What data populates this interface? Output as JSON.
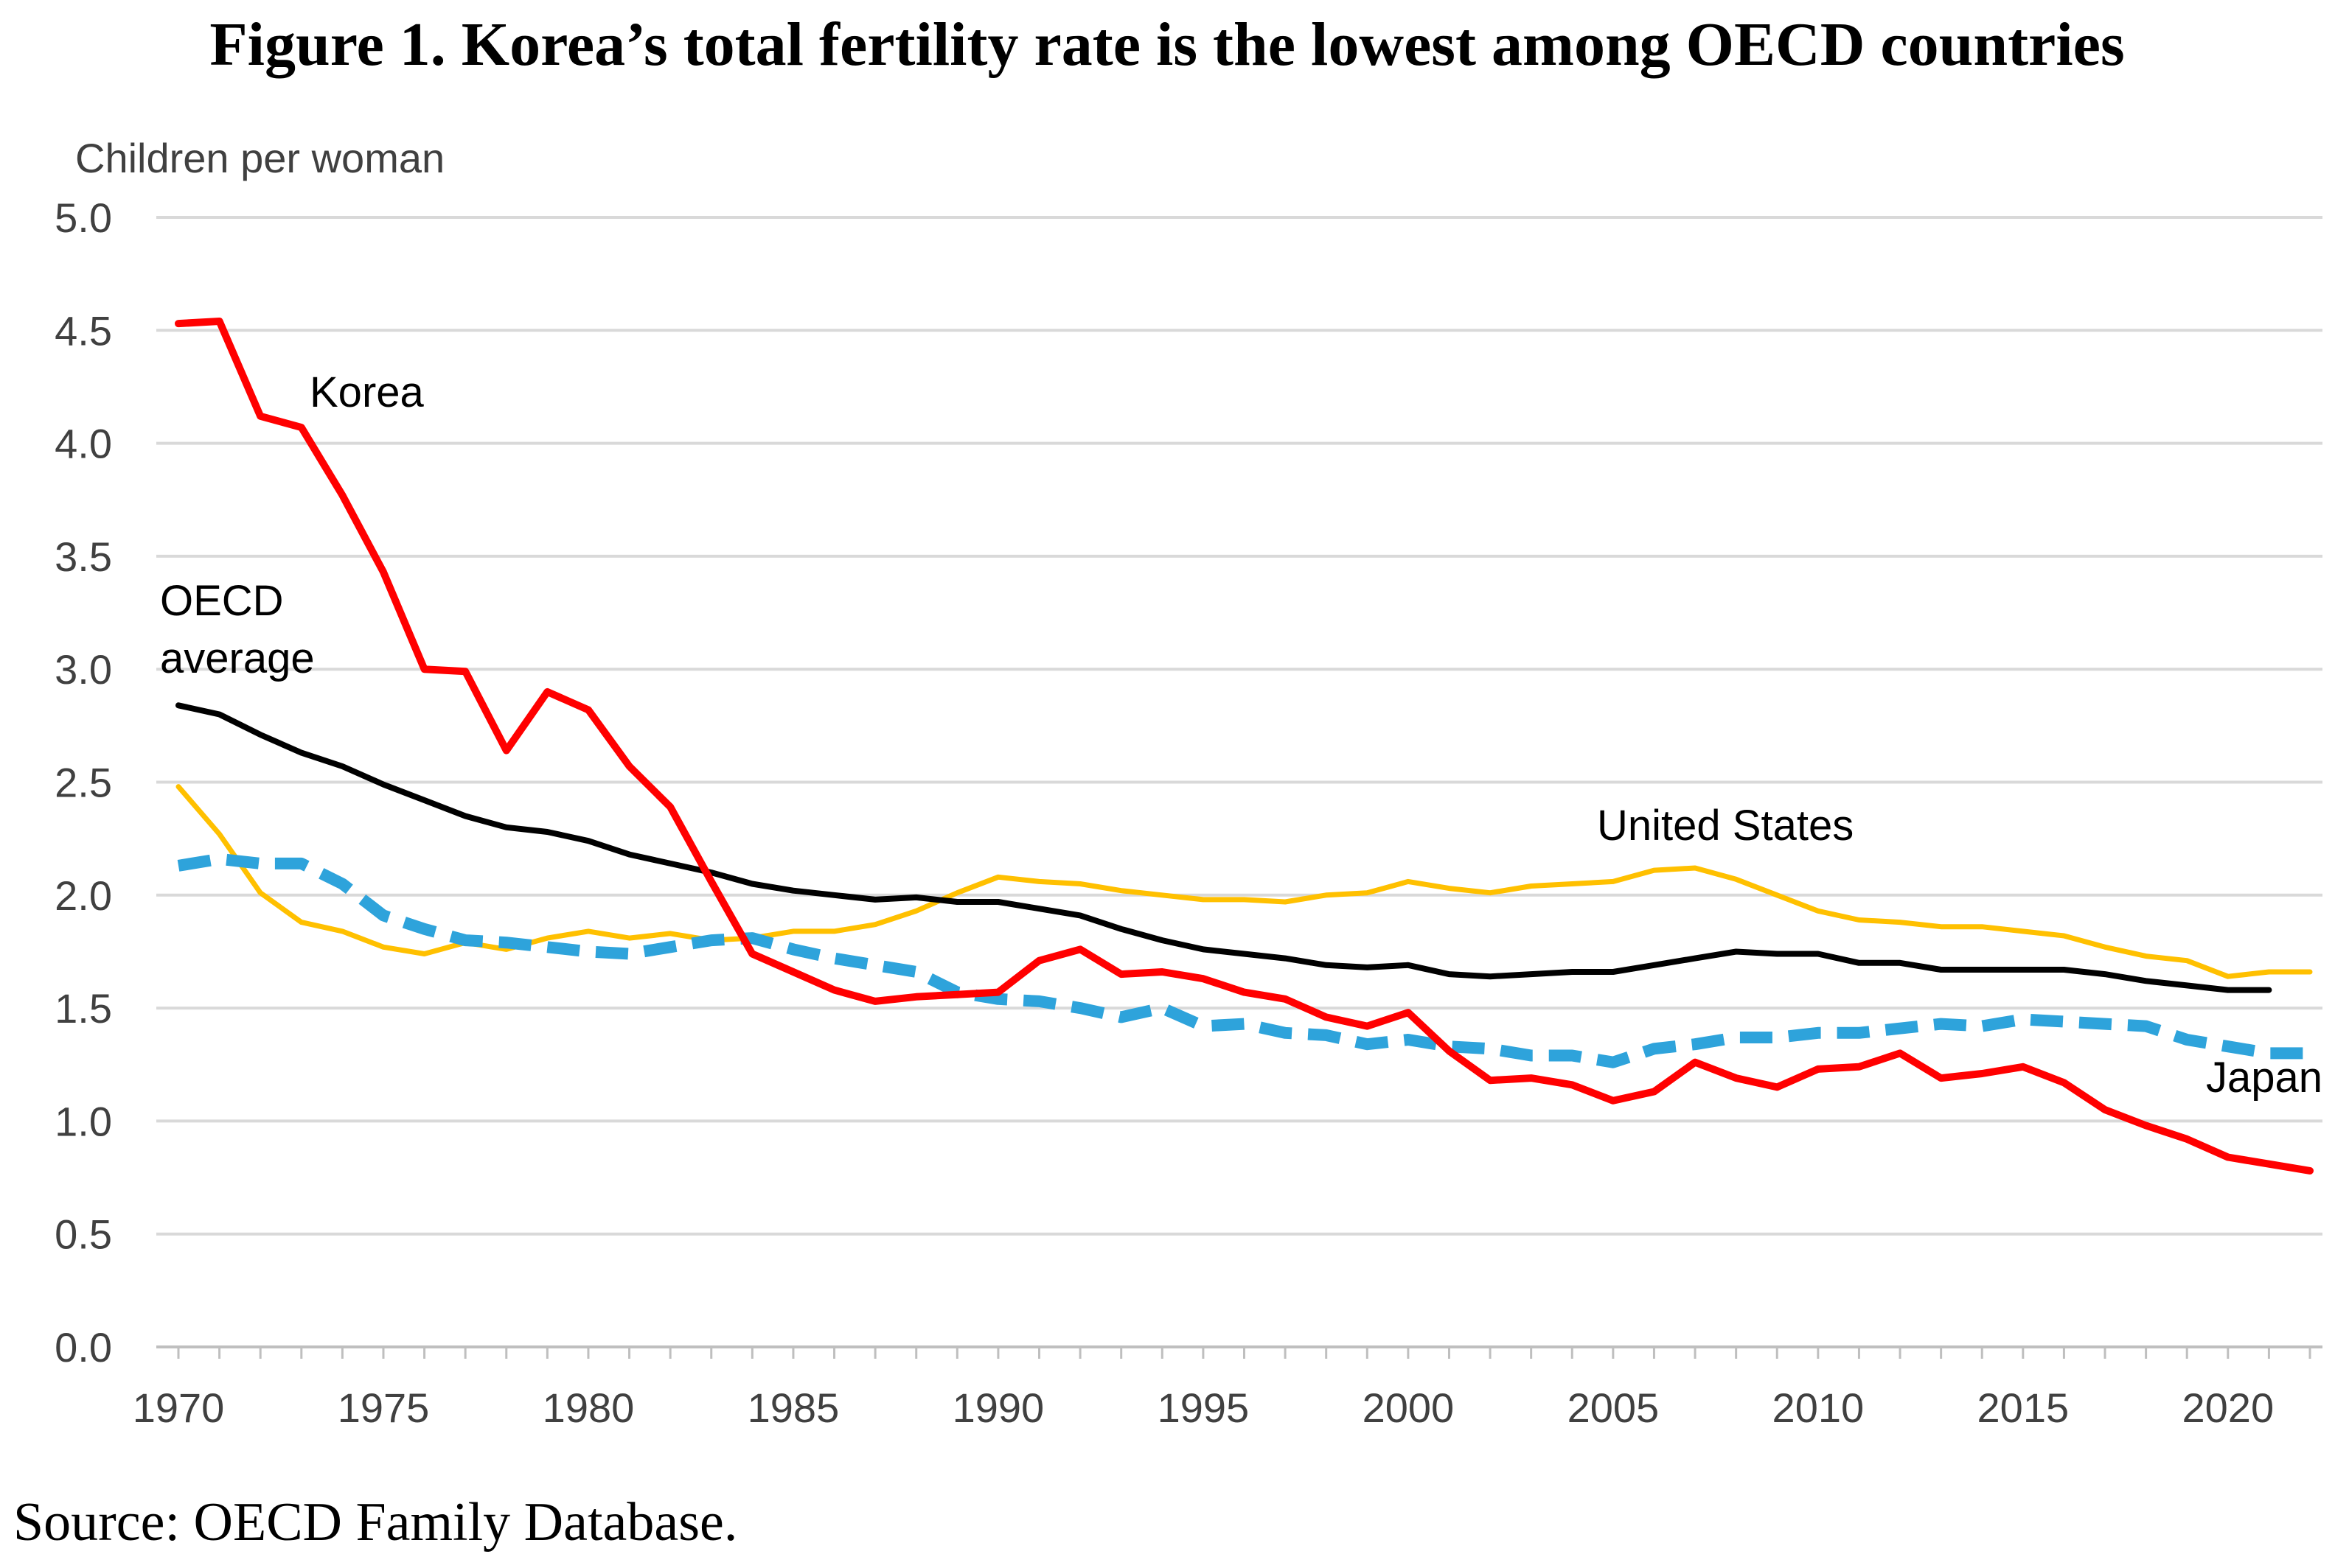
{
  "chart_data": {
    "type": "line",
    "title": "Figure 1.  Korea’s total fertility rate is the lowest among OECD countries",
    "ylabel": "Children per woman",
    "xlabel": "",
    "source": "Source: OECD Family Database.",
    "ylim": [
      0,
      5
    ],
    "xlim": [
      1970,
      2022
    ],
    "grid": true,
    "y_ticks": [
      "0.0",
      "0.5",
      "1.0",
      "1.5",
      "2.0",
      "2.5",
      "3.0",
      "3.5",
      "4.0",
      "4.5",
      "5.0"
    ],
    "y_tick_values": [
      0,
      0.5,
      1,
      1.5,
      2,
      2.5,
      3,
      3.5,
      4,
      4.5,
      5
    ],
    "x_ticks": [
      "1970",
      "1975",
      "1980",
      "1985",
      "1990",
      "1995",
      "2000",
      "2005",
      "2010",
      "2015",
      "2020"
    ],
    "x_tick_values": [
      1970,
      1975,
      1980,
      1985,
      1990,
      1995,
      2000,
      2005,
      2010,
      2015,
      2020
    ],
    "series": [
      {
        "name": "Korea",
        "label_lines": [
          "Korea"
        ],
        "color": "#ff0000",
        "style": "solid",
        "x": [
          1970,
          1971,
          1972,
          1973,
          1974,
          1975,
          1976,
          1977,
          1978,
          1979,
          1980,
          1981,
          1982,
          1983,
          1984,
          1985,
          1986,
          1987,
          1988,
          1989,
          1990,
          1991,
          1992,
          1993,
          1994,
          1995,
          1996,
          1997,
          1998,
          1999,
          2000,
          2001,
          2002,
          2003,
          2004,
          2005,
          2006,
          2007,
          2008,
          2009,
          2010,
          2011,
          2012,
          2013,
          2014,
          2015,
          2016,
          2017,
          2018,
          2019,
          2020,
          2021,
          2022
        ],
        "values": [
          4.53,
          4.54,
          4.12,
          4.07,
          3.77,
          3.43,
          3.0,
          2.99,
          2.64,
          2.9,
          2.82,
          2.57,
          2.39,
          2.06,
          1.74,
          1.66,
          1.58,
          1.53,
          1.55,
          1.56,
          1.57,
          1.71,
          1.76,
          1.65,
          1.66,
          1.63,
          1.57,
          1.54,
          1.46,
          1.42,
          1.48,
          1.31,
          1.18,
          1.19,
          1.16,
          1.09,
          1.13,
          1.26,
          1.19,
          1.15,
          1.23,
          1.24,
          1.3,
          1.19,
          1.21,
          1.24,
          1.17,
          1.05,
          0.98,
          0.92,
          0.84,
          0.81,
          0.78
        ]
      },
      {
        "name": "OECD average",
        "label_lines": [
          "OECD",
          "average"
        ],
        "color": "#000000",
        "style": "solid",
        "x": [
          1970,
          1971,
          1972,
          1973,
          1974,
          1975,
          1976,
          1977,
          1978,
          1979,
          1980,
          1981,
          1982,
          1983,
          1984,
          1985,
          1986,
          1987,
          1988,
          1989,
          1990,
          1991,
          1992,
          1993,
          1994,
          1995,
          1996,
          1997,
          1998,
          1999,
          2000,
          2001,
          2002,
          2003,
          2004,
          2005,
          2006,
          2007,
          2008,
          2009,
          2010,
          2011,
          2012,
          2013,
          2014,
          2015,
          2016,
          2017,
          2018,
          2019,
          2020,
          2021
        ],
        "values": [
          2.84,
          2.8,
          2.71,
          2.63,
          2.57,
          2.49,
          2.42,
          2.35,
          2.3,
          2.28,
          2.24,
          2.18,
          2.14,
          2.1,
          2.05,
          2.02,
          2.0,
          1.98,
          1.99,
          1.97,
          1.97,
          1.94,
          1.91,
          1.85,
          1.8,
          1.76,
          1.74,
          1.72,
          1.69,
          1.68,
          1.69,
          1.65,
          1.64,
          1.65,
          1.66,
          1.66,
          1.69,
          1.72,
          1.75,
          1.74,
          1.74,
          1.7,
          1.7,
          1.67,
          1.67,
          1.67,
          1.67,
          1.65,
          1.62,
          1.6,
          1.58,
          1.58
        ]
      },
      {
        "name": "United States",
        "label_lines": [
          "United States"
        ],
        "color": "#ffc000",
        "style": "solid",
        "x": [
          1970,
          1971,
          1972,
          1973,
          1974,
          1975,
          1976,
          1977,
          1978,
          1979,
          1980,
          1981,
          1982,
          1983,
          1984,
          1985,
          1986,
          1987,
          1988,
          1989,
          1990,
          1991,
          1992,
          1993,
          1994,
          1995,
          1996,
          1997,
          1998,
          1999,
          2000,
          2001,
          2002,
          2003,
          2004,
          2005,
          2006,
          2007,
          2008,
          2009,
          2010,
          2011,
          2012,
          2013,
          2014,
          2015,
          2016,
          2017,
          2018,
          2019,
          2020,
          2021,
          2022
        ],
        "values": [
          2.48,
          2.27,
          2.01,
          1.88,
          1.84,
          1.77,
          1.74,
          1.79,
          1.76,
          1.81,
          1.84,
          1.81,
          1.83,
          1.8,
          1.81,
          1.84,
          1.84,
          1.87,
          1.93,
          2.01,
          2.08,
          2.06,
          2.05,
          2.02,
          2.0,
          1.98,
          1.98,
          1.97,
          2.0,
          2.01,
          2.06,
          2.03,
          2.01,
          2.04,
          2.05,
          2.06,
          2.11,
          2.12,
          2.07,
          2.0,
          1.93,
          1.89,
          1.88,
          1.86,
          1.86,
          1.84,
          1.82,
          1.77,
          1.73,
          1.71,
          1.64,
          1.66,
          1.66
        ]
      },
      {
        "name": "Japan",
        "label_lines": [
          "Japan"
        ],
        "color": "#2ea3db",
        "style": "dashed",
        "x": [
          1970,
          1971,
          1972,
          1973,
          1974,
          1975,
          1976,
          1977,
          1978,
          1979,
          1980,
          1981,
          1982,
          1983,
          1984,
          1985,
          1986,
          1987,
          1988,
          1989,
          1990,
          1991,
          1992,
          1993,
          1994,
          1995,
          1996,
          1997,
          1998,
          1999,
          2000,
          2001,
          2002,
          2003,
          2004,
          2005,
          2006,
          2007,
          2008,
          2009,
          2010,
          2011,
          2012,
          2013,
          2014,
          2015,
          2016,
          2017,
          2018,
          2019,
          2020,
          2021,
          2022
        ],
        "values": [
          2.13,
          2.16,
          2.14,
          2.14,
          2.05,
          1.91,
          1.85,
          1.8,
          1.79,
          1.77,
          1.75,
          1.74,
          1.77,
          1.8,
          1.81,
          1.76,
          1.72,
          1.69,
          1.66,
          1.57,
          1.54,
          1.53,
          1.5,
          1.46,
          1.5,
          1.42,
          1.43,
          1.39,
          1.38,
          1.34,
          1.36,
          1.33,
          1.32,
          1.29,
          1.29,
          1.26,
          1.32,
          1.34,
          1.37,
          1.37,
          1.39,
          1.39,
          1.41,
          1.43,
          1.42,
          1.45,
          1.44,
          1.43,
          1.42,
          1.36,
          1.33,
          1.3,
          1.3
        ]
      }
    ]
  }
}
